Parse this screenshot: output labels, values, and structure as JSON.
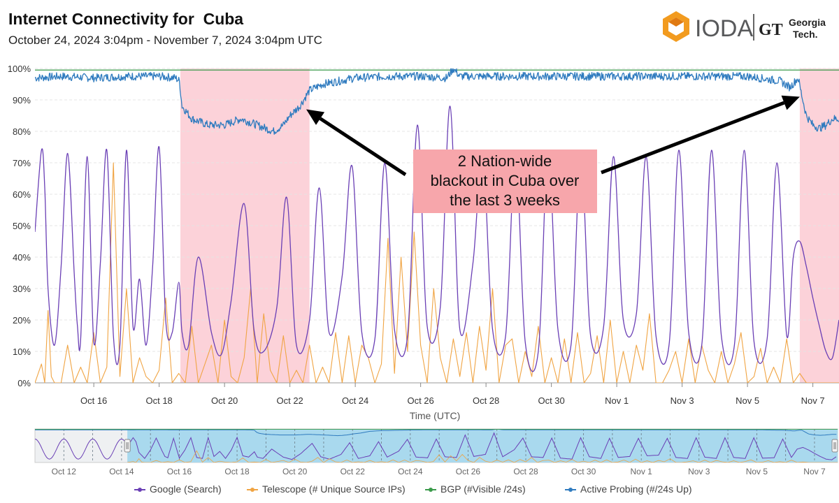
{
  "page": {
    "title": "Internet Connectivity for  Cuba",
    "subtitle": "October 24, 2024 3:04pm - November 7, 2024 3:04pm UTC"
  },
  "logo": {
    "ioda_text": "IODA",
    "gt_mark": "GT",
    "gt_text_line1": "Georgia",
    "gt_text_line2": "Tech."
  },
  "colors": {
    "google": "#6a3fb5",
    "telescope": "#f0a443",
    "bgp": "#3a9a4a",
    "probing": "#2f7bbf",
    "outage": "#fcd2d9",
    "annotation_box": "#f7a6ab",
    "brush": "#a9d9ee"
  },
  "chart_data": {
    "type": "line",
    "title": "Internet Connectivity for  Cuba",
    "xlabel": "Time (UTC)",
    "ylabel": "",
    "x_unit": "days since Oct 15, 2024 00:00 UTC",
    "xlim": [
      -0.8,
      23.8
    ],
    "ylim": [
      0,
      100
    ],
    "y_ticks": [
      0,
      10,
      20,
      30,
      40,
      50,
      60,
      70,
      80,
      90,
      100
    ],
    "y_tick_labels": [
      "0%",
      "10%",
      "20%",
      "30%",
      "40%",
      "50%",
      "60%",
      "70%",
      "80%",
      "90%",
      "100%"
    ],
    "x_ticks": [
      1,
      3,
      5,
      7,
      9,
      11,
      13,
      15,
      17,
      19,
      21,
      23
    ],
    "x_tick_labels": [
      "Oct 16",
      "Oct 18",
      "Oct 20",
      "Oct 22",
      "Oct 24",
      "Oct 26",
      "Oct 28",
      "Oct 30",
      "Nov 1",
      "Nov 3",
      "Nov 5",
      "Nov 7"
    ],
    "shaded_regions": [
      [
        3.65,
        7.6
      ],
      [
        22.6,
        23.8
      ]
    ],
    "annotation": {
      "lines": [
        "2 Nation-wide",
        "blackout in Cuba over",
        "the last 3 weeks"
      ],
      "arrow_targets": [
        {
          "x": 7.5,
          "y": 87
        },
        {
          "x": 22.6,
          "y": 91
        }
      ]
    },
    "series": [
      {
        "name": "Google (Search)",
        "key": "google",
        "x": [
          -0.8,
          -0.6,
          -0.5,
          -0.4,
          -0.2,
          0.0,
          0.2,
          0.4,
          0.5,
          0.6,
          0.8,
          1.0,
          1.2,
          1.4,
          1.6,
          1.8,
          2.0,
          2.2,
          2.4,
          2.6,
          2.8,
          3.0,
          3.2,
          3.4,
          3.6,
          3.7,
          3.9,
          4.2,
          4.6,
          4.9,
          5.2,
          5.6,
          5.9,
          6.2,
          6.6,
          6.9,
          7.2,
          7.6,
          7.9,
          8.2,
          8.6,
          8.9,
          9.2,
          9.6,
          9.9,
          10.2,
          10.6,
          10.9,
          11.2,
          11.6,
          11.9,
          12.2,
          12.6,
          12.9,
          13.2,
          13.6,
          13.9,
          14.2,
          14.6,
          14.9,
          15.2,
          15.6,
          15.9,
          16.2,
          16.6,
          16.9,
          17.2,
          17.6,
          17.9,
          18.2,
          18.6,
          18.9,
          19.2,
          19.6,
          19.9,
          20.2,
          20.6,
          20.9,
          21.2,
          21.6,
          21.9,
          22.2,
          22.4,
          22.6,
          22.8,
          23.0,
          23.2,
          23.4,
          23.6,
          23.8
        ],
        "y": [
          48,
          74,
          62,
          30,
          12,
          37,
          73,
          35,
          18,
          14,
          72,
          13,
          38,
          74,
          15,
          12,
          74,
          18,
          33,
          12,
          37,
          75,
          20,
          16,
          32,
          16,
          12,
          40,
          16,
          9,
          26,
          57,
          17,
          10,
          24,
          59,
          12,
          20,
          62,
          16,
          34,
          69,
          16,
          14,
          70,
          17,
          15,
          82,
          18,
          24,
          88,
          17,
          38,
          73,
          17,
          15,
          73,
          13,
          10,
          74,
          17,
          12,
          72,
          15,
          18,
          72,
          20,
          22,
          72,
          15,
          12,
          74,
          16,
          12,
          74,
          15,
          12,
          74,
          13,
          14,
          70,
          15,
          40,
          45,
          37,
          27,
          18,
          10,
          8,
          20
        ]
      },
      {
        "name": "Telescope (# Unique Source IPs)",
        "key": "telescope",
        "x": [
          -0.8,
          -0.6,
          -0.5,
          -0.4,
          -0.3,
          -0.2,
          0.0,
          0.2,
          0.4,
          0.6,
          0.8,
          1.0,
          1.2,
          1.4,
          1.6,
          1.8,
          2.0,
          2.2,
          2.4,
          2.6,
          2.8,
          3.0,
          3.2,
          3.4,
          3.6,
          3.8,
          4.0,
          4.2,
          4.4,
          4.6,
          4.8,
          5.0,
          5.2,
          5.4,
          5.6,
          5.8,
          6.0,
          6.2,
          6.4,
          6.6,
          6.8,
          7.0,
          7.2,
          7.4,
          7.6,
          7.8,
          8.0,
          8.2,
          8.4,
          8.6,
          8.8,
          9.0,
          9.2,
          9.4,
          9.6,
          9.8,
          10.0,
          10.2,
          10.4,
          10.6,
          10.8,
          11.0,
          11.2,
          11.4,
          11.6,
          11.8,
          12.0,
          12.2,
          12.4,
          12.6,
          12.8,
          13.0,
          13.2,
          13.4,
          13.6,
          13.8,
          14.0,
          14.2,
          14.4,
          14.6,
          14.8,
          15.0,
          15.2,
          15.4,
          15.6,
          15.8,
          16.0,
          16.2,
          16.4,
          16.6,
          16.8,
          17.0,
          17.2,
          17.4,
          17.6,
          17.8,
          18.0,
          18.2,
          18.4,
          18.6,
          18.8,
          19.0,
          19.2,
          19.4,
          19.6,
          19.8,
          20.0,
          20.2,
          20.4,
          20.6,
          20.8,
          21.0,
          21.2,
          21.4,
          21.6,
          21.8,
          22.0,
          22.2,
          22.4,
          22.6,
          22.8,
          23.0,
          23.2,
          23.4,
          23.6,
          23.8
        ],
        "y": [
          0,
          6,
          0,
          23,
          2,
          0,
          0,
          12,
          0,
          5,
          0,
          16,
          0,
          5,
          70,
          2,
          30,
          0,
          8,
          2,
          0,
          4,
          27,
          0,
          3,
          0,
          18,
          0,
          6,
          12,
          0,
          20,
          2,
          0,
          8,
          30,
          0,
          22,
          4,
          0,
          15,
          0,
          4,
          0,
          12,
          0,
          5,
          0,
          16,
          0,
          15,
          0,
          12,
          8,
          0,
          6,
          46,
          3,
          40,
          10,
          48,
          12,
          0,
          30,
          8,
          0,
          14,
          2,
          16,
          0,
          18,
          4,
          30,
          0,
          12,
          14,
          0,
          10,
          2,
          18,
          0,
          8,
          0,
          14,
          0,
          16,
          0,
          3,
          15,
          0,
          20,
          0,
          10,
          0,
          12,
          4,
          22,
          0,
          0,
          4,
          10,
          0,
          14,
          0,
          12,
          4,
          0,
          10,
          0,
          6,
          16,
          0,
          2,
          11,
          0,
          5,
          0,
          14,
          0,
          3,
          0,
          0,
          0,
          0,
          0,
          0
        ]
      },
      {
        "name": "BGP (#Visible /24s)",
        "key": "bgp",
        "x": [
          -0.8,
          23.8
        ],
        "y": [
          99.5,
          99.5
        ]
      },
      {
        "name": "Active Probing (#/24s Up)",
        "key": "probing",
        "x": [
          -0.8,
          0.0,
          1.0,
          2.0,
          3.0,
          3.5,
          3.62,
          3.7,
          4.0,
          4.5,
          5.0,
          5.5,
          6.0,
          6.5,
          6.8,
          7.0,
          7.3,
          7.6,
          8.0,
          8.5,
          9.0,
          10.0,
          11.0,
          11.8,
          12.0,
          12.2,
          13.0,
          14.0,
          15.0,
          16.0,
          17.0,
          18.0,
          19.0,
          20.0,
          21.0,
          22.0,
          22.3,
          22.55,
          22.65,
          22.8,
          23.0,
          23.2,
          23.4,
          23.6,
          23.8
        ],
        "y": [
          97,
          97.5,
          97,
          97.5,
          97.5,
          97,
          96,
          88,
          84,
          82,
          82,
          84,
          82,
          80,
          82,
          85,
          88,
          93,
          95,
          96,
          97,
          97.5,
          97.5,
          97,
          100,
          97.5,
          97.5,
          97.5,
          97.5,
          97.5,
          97.5,
          97.5,
          97.5,
          97.5,
          97.5,
          96,
          94,
          97,
          92,
          85,
          82,
          81,
          82,
          84,
          84
        ]
      }
    ],
    "navigator": {
      "xlim": [
        -4.0,
        23.8
      ],
      "x_ticks": [
        -3,
        -1,
        1,
        3,
        5,
        7,
        9,
        11,
        13,
        15,
        17,
        19,
        21,
        23
      ],
      "x_tick_labels": [
        "Oct 12",
        "Oct 14",
        "Oct 16",
        "Oct 18",
        "Oct 20",
        "Oct 22",
        "Oct 24",
        "Oct 26",
        "Oct 28",
        "Oct 30",
        "Nov 1",
        "Nov 3",
        "Nov 5",
        "Nov 7"
      ],
      "selection": [
        -0.8,
        23.8
      ]
    }
  }
}
